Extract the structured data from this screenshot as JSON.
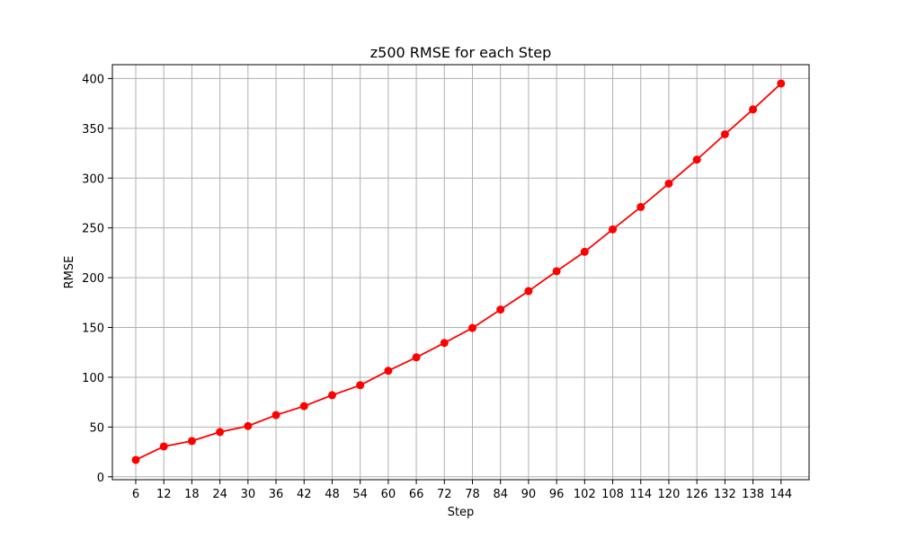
{
  "chart_data": {
    "type": "line",
    "title": "z500 RMSE for each Step",
    "xlabel": "Step",
    "ylabel": "RMSE",
    "x": [
      6,
      12,
      18,
      24,
      30,
      36,
      42,
      48,
      54,
      60,
      66,
      72,
      78,
      84,
      90,
      96,
      102,
      108,
      114,
      120,
      126,
      132,
      138,
      144
    ],
    "series": [
      {
        "values": [
          17,
          30.5,
          36,
          45,
          51,
          62,
          71,
          82,
          92,
          106.5,
          120,
          134.5,
          149.5,
          168,
          186.5,
          206.5,
          226,
          248.5,
          271,
          294.5,
          318.5,
          344,
          369,
          395
        ],
        "color": "#ff0000",
        "marker": "circle"
      }
    ],
    "xticks": [
      "6",
      "12",
      "18",
      "24",
      "30",
      "36",
      "42",
      "48",
      "54",
      "60",
      "66",
      "72",
      "78",
      "84",
      "90",
      "96",
      "102",
      "108",
      "114",
      "120",
      "126",
      "132",
      "138",
      "144"
    ],
    "yticks": [
      0,
      50,
      100,
      150,
      200,
      250,
      300,
      350,
      400
    ],
    "ytick_labels": [
      "0",
      "50",
      "100",
      "150",
      "200",
      "250",
      "300",
      "350",
      "400"
    ],
    "xlim": [
      1,
      150
    ],
    "ylim": [
      -2.9,
      413.9
    ],
    "grid": true,
    "grid_color": "#b0b0b0",
    "legend": "none"
  }
}
